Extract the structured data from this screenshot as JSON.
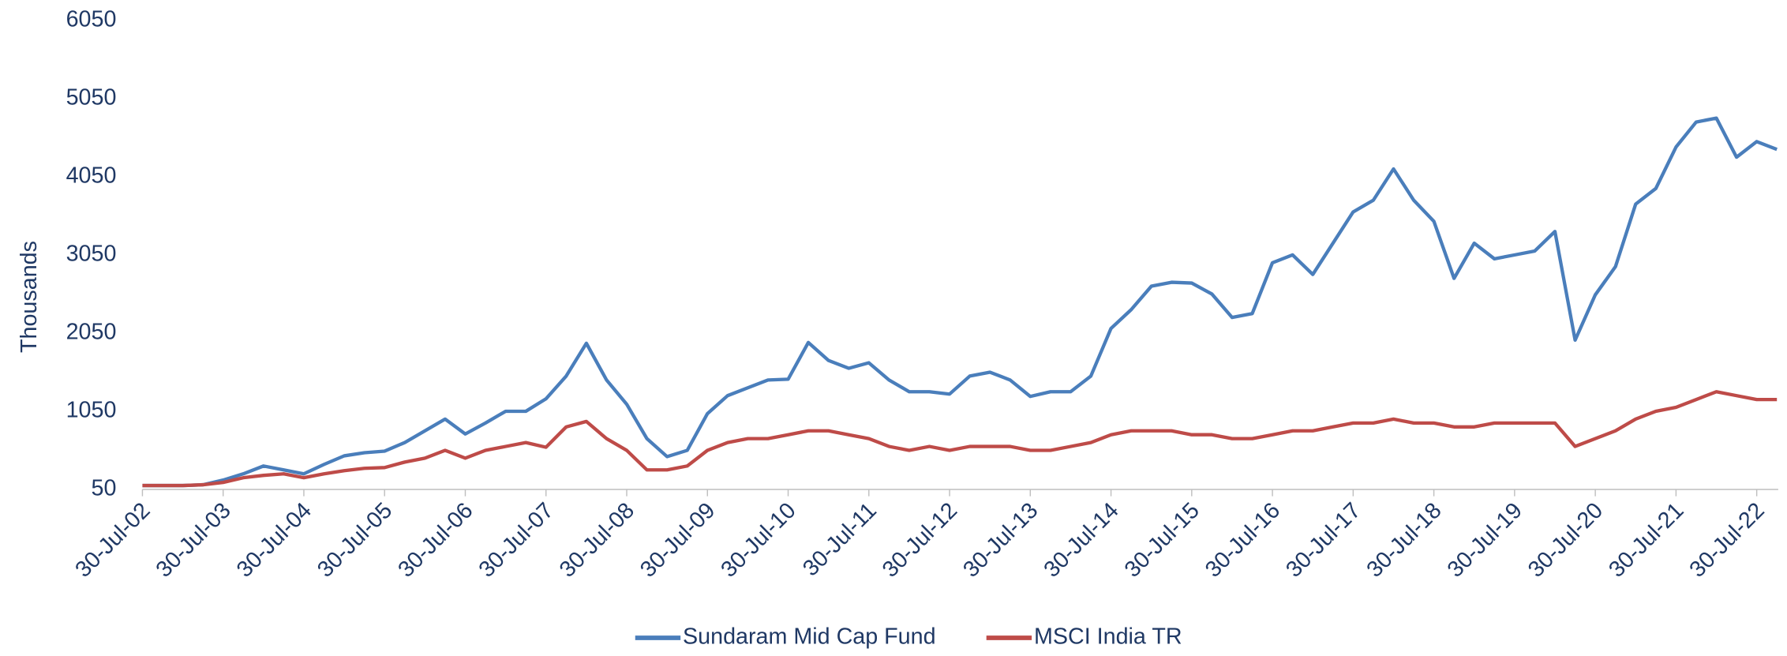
{
  "chart_data": {
    "type": "line",
    "ylabel": "Thousands",
    "categories": [
      "30-Jul-02",
      null,
      null,
      null,
      "30-Jul-03",
      null,
      null,
      null,
      "30-Jul-04",
      null,
      null,
      null,
      "30-Jul-05",
      null,
      null,
      null,
      "30-Jul-06",
      null,
      null,
      null,
      "30-Jul-07",
      null,
      null,
      null,
      "30-Jul-08",
      null,
      null,
      null,
      "30-Jul-09",
      null,
      null,
      null,
      "30-Jul-10",
      null,
      null,
      null,
      "30-Jul-11",
      null,
      null,
      null,
      "30-Jul-12",
      null,
      null,
      null,
      "30-Jul-13",
      null,
      null,
      null,
      "30-Jul-14",
      null,
      null,
      null,
      "30-Jul-15",
      null,
      null,
      null,
      "30-Jul-16",
      null,
      null,
      null,
      "30-Jul-17",
      null,
      null,
      null,
      "30-Jul-18",
      null,
      null,
      null,
      "30-Jul-19",
      null,
      null,
      null,
      "30-Jul-20",
      null,
      null,
      null,
      "30-Jul-21",
      null,
      null,
      null,
      "30-Jul-22",
      null
    ],
    "series": [
      {
        "name": "Sundaram Mid Cap Fund",
        "color": "#4a7ebb",
        "values": [
          100,
          100,
          100,
          110,
          170,
          250,
          350,
          300,
          250,
          370,
          480,
          520,
          540,
          650,
          800,
          950,
          760,
          900,
          1050,
          1050,
          1210,
          1500,
          1920,
          1450,
          1140,
          700,
          470,
          550,
          1020,
          1250,
          1350,
          1450,
          1460,
          1930,
          1700,
          1600,
          1670,
          1450,
          1300,
          1300,
          1270,
          1500,
          1550,
          1450,
          1240,
          1300,
          1300,
          1500,
          2110,
          2350,
          2650,
          2700,
          2690,
          2550,
          2250,
          2300,
          2950,
          3050,
          2800,
          3200,
          3600,
          3750,
          4150,
          3750,
          3480,
          2750,
          3200,
          3000,
          3050,
          3100,
          3350,
          1960,
          2540,
          2900,
          3700,
          3900,
          4430,
          4750,
          4800,
          4300,
          4500,
          4400
        ]
      },
      {
        "name": "MSCI India TR",
        "color": "#be4b48",
        "values": [
          100,
          100,
          100,
          110,
          140,
          200,
          230,
          250,
          200,
          250,
          290,
          320,
          330,
          400,
          450,
          550,
          450,
          550,
          600,
          650,
          590,
          850,
          920,
          700,
          550,
          300,
          300,
          350,
          550,
          650,
          700,
          700,
          750,
          800,
          800,
          750,
          700,
          600,
          550,
          600,
          550,
          600,
          600,
          600,
          550,
          550,
          600,
          650,
          750,
          800,
          800,
          800,
          750,
          750,
          700,
          700,
          750,
          800,
          800,
          850,
          900,
          900,
          950,
          900,
          900,
          850,
          850,
          900,
          900,
          900,
          900,
          600,
          700,
          800,
          950,
          1050,
          1100,
          1200,
          1300,
          1250,
          1200,
          1200
        ]
      }
    ],
    "ylim": [
      50,
      6050
    ],
    "yticks": [
      50,
      1050,
      2050,
      3050,
      4050,
      5050,
      6050
    ],
    "legend": "bottom"
  }
}
